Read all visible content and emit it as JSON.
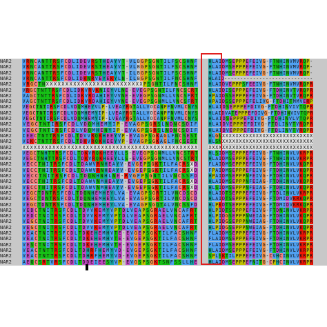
{
  "alignment": {
    "rows": [
      {
        "label": "NAR2",
        "left": "VRNCANTTRSFCDLIDEVRSTHEAYVT-VLBGPSGNTILFSCSHNF",
        "right": "HLAIDMSEPPPEFEIVG-FTNHINVMVRQP-"
      },
      {
        "label": "NAR2",
        "left": "VRNCANTTRSFCDLIDEVRSTHEAYVT-VLBGPSGNTILFSCSHNF",
        "right": "HLAIDMSEPPPEFEIVG-FTNHINVMVRQP-"
      },
      {
        "label": "NAR2",
        "left": "VRNCANTTRSFCDLIDEVRSTHEAYVT-ILBGPSGNTILFSCSHNF",
        "right": "HLAIDMSEPPPEFEIVG-FTNHINVMVRQP-"
      },
      {
        "label": "NAR2",
        "left": "VRNCANTTRSFCDLIDKNRVEYEKYLN-ILBGPSGNTILFNCSHNF",
        "right": "HLAID----------------------------"
      },
      {
        "label": "NAR2",
        "left": "VRGCTNXXXXXXXXXXXXXXXXXXXXXXXXXPSGNTILFNCSHNF",
        "right": "HLAIDVEPPPSFEEIVG-FTNHINVMVRQPR"
      },
      {
        "label": "NAR2",
        "left": "VRGCTNTTRSFCDLIDKVRVKNIEYVLNE-EVEGPSGNTILFNCSCRT",
        "right": "HLAIDISEPPPEFEIVG-FTDHINVTVRQPR"
      },
      {
        "label": "NAR2",
        "left": "VAGCTNTTRSFCDLIDKVRDAHIEYVVNE-EVEGPSGNMLLVNCSFRT",
        "right": "HPAIDSSEPPPEFEIVG-FTDHINVTVRQPR"
      },
      {
        "label": "NAR2",
        "left": "VAGCTNTTRSFCDLIDKVRDAHIEYVVNE-EVEGPSGNMLLVNCSFRT",
        "right": "HPAIDSSEPPPEFELIVG-FTDHITMMVERP"
      },
      {
        "label": "NAR2",
        "left": "VEGCTNTIRSFCDLVDQMHEYVLP-LVEAYRGTALLVOCANPFNVMLCNYS",
        "right": "HLAIDSEPPPEFDIVG-FTDHINVIVTQPR"
      },
      {
        "label": "NAR2",
        "left": "VEGCTNTIRSFCDLVDQMHEMYIP-LVEAYRGTALLVOCANPFNVMLCNYS",
        "right": "HLAIDVATEPPPEFDIVG-FTDHINVIVTQPR"
      },
      {
        "label": "NAR2",
        "left": "VEGCTNTIRSFCDLVDQMHEMYIP-LVEAYRGTALLVOCANPFNVMLCNYS",
        "right": "HLAIDSEPPPEFDIVG-FTDHINVLVTQPR"
      },
      {
        "label": "NAR2",
        "left": "VEGCTNTIRSFCDLVDQMHEMYIP-EVAGPSGRSLNDNCSDIF",
        "right": "HLAIDVEPPPEFDIVG-FTDLINVTVRQPR"
      },
      {
        "label": "NAR2",
        "left": "VEGCTNTIRSFCDLVDQMHENYIP-EVAGPSGRSLNDNCSDIF",
        "right": "HLAIDVEPPPEFDIVG-FTDLINVTVRQPR"
      },
      {
        "label": "NAR2",
        "left": "IEECTNTTRSFCDLTDVVRQKHEEYVP-EVAGPSGKAGLFNCSEST",
        "right": "HLGNXXXXXXXXXXXXXXXXXXXXXXXXXXX"
      },
      {
        "label": "NAR2",
        "left": "VEKCTNTTRSFCDLTDKVRQKHEEYVP-EVAGPSGKAGLFNCSEST",
        "right": "HLSNXXXXXXXXXXXXXXXXXXXXXXXXXXX"
      },
      {
        "label": "NAR2",
        "left": "XXXXXXXXXXXXXXXXXXXXXXXXXXXXXXXXXXXXXXXXXXXXXXX",
        "right": "XXXXXXXXXXXXXXXXXXXXXXXXXXXXXXX"
      },
      {
        "label": "NAR2",
        "left": "VEGCTNHTTRSFCDLTDKVRQKHEEYLLS-EVEGPSGNMLLVNCSTRT",
        "right": "HLSIDMSEPPPEFEIVG-FTNHINVLVKRPR"
      },
      {
        "label": "NAR2",
        "left": "VEGCTNHTTRSFCDLTDKVRQKHEEYLLS-EVEGPSGNMLLVNCSTRT",
        "right": "HLAIDMSEPPPEFEIVG-FTNHINVLVKRPR"
      },
      {
        "label": "NAR2",
        "left": "VECCTNITRSFCDLTDAWVRNHEAYV-EVGEPSGKTILFACRSXD",
        "right": "FLAIDMSEPPPEFEIVG-FTDHINVLVKQPR"
      },
      {
        "label": "NAR2",
        "left": "VECCTNITRSFCDLTDAWVRNHEAYV-EVGEPSGKTILFACRSXD",
        "right": "FPAIDMSEPPPEFEIVG-FTDHINVLVKQPR"
      },
      {
        "label": "NAR2",
        "left": "VECCTNITRSFCDLTDQNHNHLNE-RVGFPSGNTILVNCSSFD",
        "right": "HPAIDMSEPPPNFEIVG-FTDHINVLVKQPR"
      },
      {
        "label": "NAR2",
        "left": "VECCTNITRSFCDLTDAWVNMHEAYV-EVGEPSGKTILFACRSXD",
        "right": "HLAIDMSEPPPNFEIAG-FTDHINVLVKQPR"
      },
      {
        "label": "NAR2",
        "left": "VECCTNITRSFCDLTDAWVNMHEAYV-EVGEPSGKTILFACRSXD",
        "right": "HLSIDMSEPPPNFEIAG-FTDHINVLVKQPR"
      },
      {
        "label": "NAR2",
        "left": "VEGCTDNTRSFCDLTDQNHEMHEYLVA-EVAGPSGRTILVNCDSCD",
        "right": "HLAIDTSEPPPEFEIVG-FTDLINVLVKRPR"
      },
      {
        "label": "NAR2",
        "left": "VEGCTDNTRSFCDLTDQNHEMHEYLVA-EVAGPSGRTILVNCDSCD",
        "right": "HLAIDTSEPPPEFEIVG-FTDMIDVKRKQPR"
      },
      {
        "label": "NAR2",
        "left": "VEGCTDNTRSFCDLTDQNHEMHEYLVA-EVAGPSGQTALVNCSSFD",
        "right": "HLPKDTSEPPPEFEIVG-FTDMIDVKRKQPR"
      },
      {
        "label": "NAR2",
        "left": "VEDCTNITRSFCDLTDVVKEMYVPTDLVEAPSGRAELVNCAFRT",
        "right": "HLPIDTSEPPPEFEIVG-FTDNINVLVKRPR"
      },
      {
        "label": "NAR2",
        "left": "VEDCTNITRSFCDLTDVVKEMYVPTDLVEAPSGRAELVNCAFRT",
        "right": "HLPIDGSEPPPNWEIAG-FTDHINVLVKQPR"
      },
      {
        "label": "NAR2",
        "left": "VEGCTNITRSFCDLTDVVKEMYVPTDLVEAPSGRAELVNCAFRT",
        "right": "HLPIDGSEPPPNWEIAG-FTDHINVLVKQPR"
      },
      {
        "label": "NAR2",
        "left": "VEGCTNITRSFCDLTDVVKEMYVPTDLVEAPSGRAELVNCAFRT",
        "right": "HLPIDGSEPPPNWEIAG-FTDHINVLVKQPR"
      },
      {
        "label": "NAR2",
        "left": "VEACTNITRSFCDLTDKEHEMHVTE-EVGEPSGKTILFACSHNF",
        "right": "FLAIDMSEPPPEFEIVG-FTDHINVLVKRPR"
      },
      {
        "label": "NAR2",
        "left": "VEACTNITRSFCDLTDKEHEMHVTE-EVGEPSGKTILFACSHNF",
        "right": "FLAIDMSEPPPEFEIVG-FTDHINVLVKRPR"
      },
      {
        "label": "NAR2",
        "left": "VESCTNITRSFCDLTDKEHEMHVTE-EVGEPSGKTILFACSHNF",
        "right": "FLAIDMSEPPPEFEIVG-FTDHINVLVKRPR"
      },
      {
        "label": "NAR2",
        "left": "VEACTNTTRSFCDLTDHRFHEMYVD-EVGEPSGKTILFACSHNF",
        "right": "HLAIDMSEPPPEFEIVG-FTDHINVLVKRPR"
      },
      {
        "label": "NAR2",
        "left": "VEACTNTTRSFCDLTDHRFHEMYVD-EVGEPSGKTILFACSHNF",
        "right": "SPLSKTILPPPEFEIVG-CVHCINVLVKRPR"
      },
      {
        "label": "NAR2",
        "left": "AEQCSRTVRSFCDLTDDEIEESYVP-EVGSPSGKTSNFSSLLHE",
        "right": "HLAIDMSEPPPEFNITG-CPHCINVLVKRPR"
      }
    ]
  },
  "palette": {
    "V": "#50a0f0",
    "A": "#50a0f0",
    "I": "#50a0f0",
    "L": "#50a0f0",
    "M": "#50a0f0",
    "F": "#50a0f0",
    "W": "#50a0f0",
    "C": "#f08080",
    "K": "#f01505",
    "R": "#f01505",
    "E": "#c048c0",
    "D": "#c048c0",
    "N": "#15c015",
    "Q": "#15c015",
    "S": "#15c015",
    "T": "#15c015",
    "G": "#f09048",
    "P": "#c0c000",
    "H": "#15a4a4",
    "Y": "#15a4a4",
    "X": "#e0e0e0",
    "-": "#c8c8c8"
  }
}
